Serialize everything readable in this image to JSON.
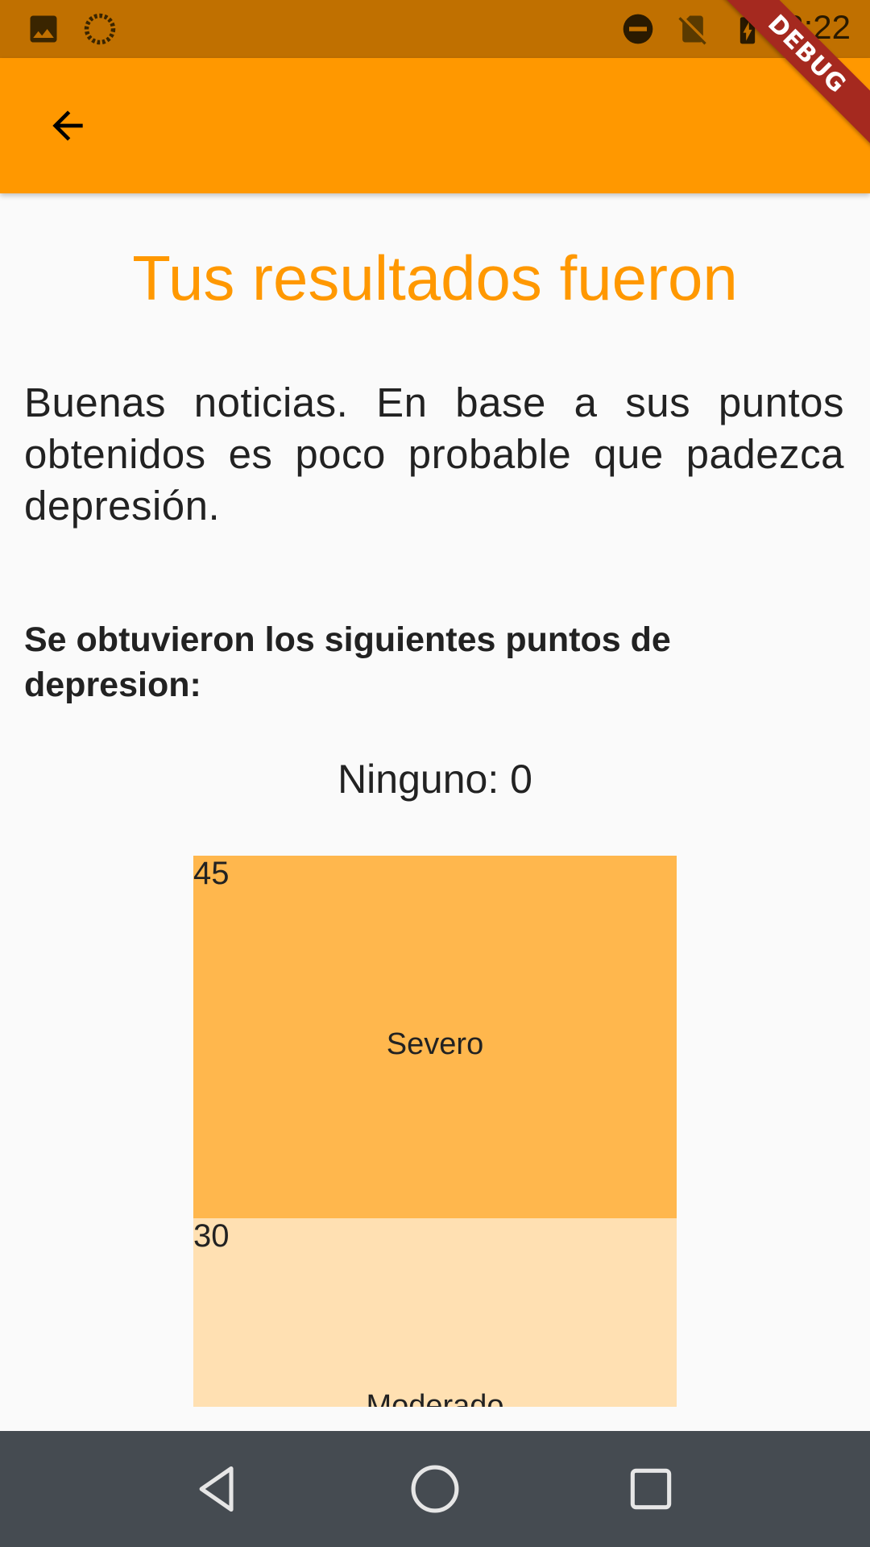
{
  "status_bar": {
    "time": "2:22",
    "icons_left": [
      "image-icon",
      "sync-icon"
    ],
    "icons_right": [
      "do-not-disturb-icon",
      "no-sim-icon",
      "battery-charging-icon"
    ]
  },
  "debug_banner": "DEBUG",
  "app_bar": {
    "back_icon": "arrow-back-icon"
  },
  "title": "Tus resultados fueron",
  "description": "Buenas noticias. En base a sus puntos obtenidos es poco probable que padezca depresión.",
  "subtitle": "Se obtuvieron los siguientes puntos de depresion:",
  "points_text": "Ninguno: 0",
  "scale": [
    {
      "threshold": "45",
      "label": "Severo",
      "color": "#ffb74d"
    },
    {
      "threshold": "30",
      "label": "Moderado",
      "color": "#ffe0b2"
    }
  ],
  "nav_bar": {
    "buttons": [
      "back-nav-icon",
      "home-nav-icon",
      "recents-nav-icon"
    ]
  },
  "colors": {
    "primary": "#ff9800",
    "status_bar": "#c07000",
    "nav_bar": "#454b51",
    "background": "#fafafa"
  }
}
